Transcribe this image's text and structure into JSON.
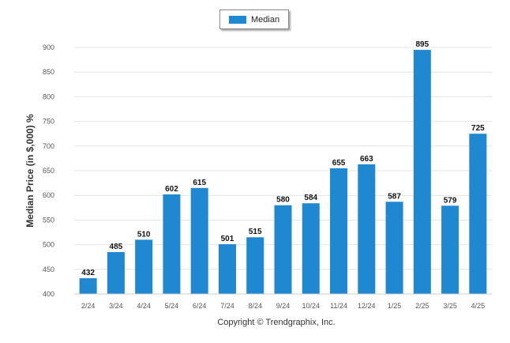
{
  "legend": {
    "label": "Median",
    "color": "#1f88d1"
  },
  "copyright": "Copyright © Trendgraphix, Inc.",
  "chart_data": {
    "type": "bar",
    "title": "",
    "xlabel": "",
    "ylabel": "Median Price (in $,000) %",
    "ylim": [
      400,
      900
    ],
    "yticks": [
      400,
      450,
      500,
      550,
      600,
      650,
      700,
      750,
      800,
      850,
      900
    ],
    "grid": true,
    "legend_position": "top-center",
    "categories": [
      "2/24",
      "3/24",
      "4/24",
      "5/24",
      "6/24",
      "7/24",
      "8/24",
      "9/24",
      "10/24",
      "11/24",
      "12/24",
      "1/25",
      "2/25",
      "3/25",
      "4/25"
    ],
    "series": [
      {
        "name": "Median",
        "color": "#1f88d1",
        "values": [
          432,
          485,
          510,
          602,
          615,
          501,
          515,
          580,
          584,
          655,
          663,
          587,
          895,
          579,
          725
        ]
      }
    ]
  }
}
